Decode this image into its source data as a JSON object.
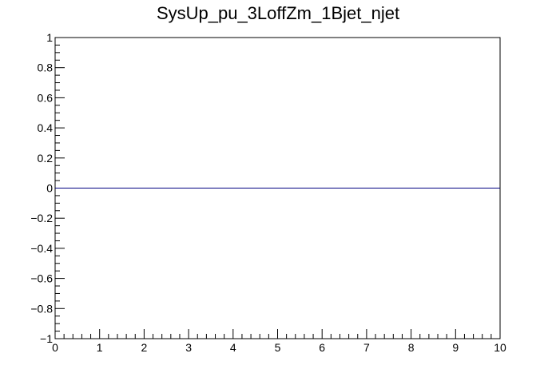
{
  "chart_data": {
    "type": "line",
    "title": "SysUp_pu_3LoffZm_1Bjet_njet",
    "xlabel": "",
    "ylabel": "",
    "xlim": [
      0,
      10
    ],
    "ylim": [
      -1,
      1
    ],
    "x_ticks": [
      "0",
      "1",
      "2",
      "3",
      "4",
      "5",
      "6",
      "7",
      "8",
      "9",
      "10"
    ],
    "y_ticks": [
      "−1",
      "−0.8",
      "−0.6",
      "−0.4",
      "−0.2",
      "0",
      "0.2",
      "0.4",
      "0.6",
      "0.8",
      "1"
    ],
    "series": [
      {
        "x": [
          0,
          10
        ],
        "y": [
          0,
          0
        ],
        "color": "#000080"
      }
    ],
    "grid": false,
    "legend": "none"
  }
}
